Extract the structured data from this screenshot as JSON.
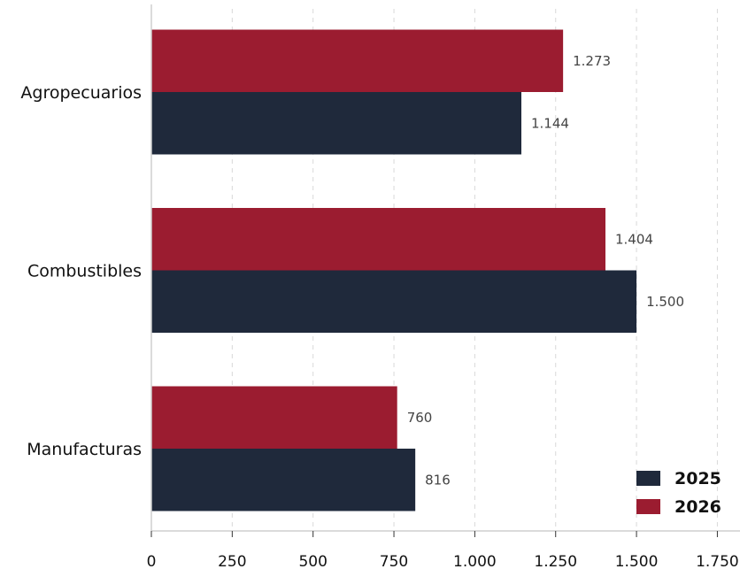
{
  "chart_data": {
    "type": "bar",
    "orientation": "horizontal",
    "categories": [
      "Agropecuarios",
      "Combustibles",
      "Manufacturas"
    ],
    "series": [
      {
        "name": "2025",
        "values": [
          1144,
          1500,
          816
        ],
        "labels": [
          "1.144",
          "1.500",
          "816"
        ],
        "color": "#1f293b"
      },
      {
        "name": "2026",
        "values": [
          1273,
          1404,
          760
        ],
        "labels": [
          "1.273",
          "1.404",
          "760"
        ],
        "color": "#9b1c30"
      }
    ],
    "xlim": [
      0,
      1820
    ],
    "xticks": [
      0,
      250,
      500,
      750,
      1000,
      1250,
      1500,
      1750
    ],
    "xtick_labels": [
      "0",
      "250",
      "500",
      "750",
      "1.000",
      "1.250",
      "1.500",
      "1.750"
    ],
    "title": "",
    "xlabel": "",
    "ylabel": "",
    "grid": "vertical dashed",
    "legend_position": "bottom-right"
  }
}
